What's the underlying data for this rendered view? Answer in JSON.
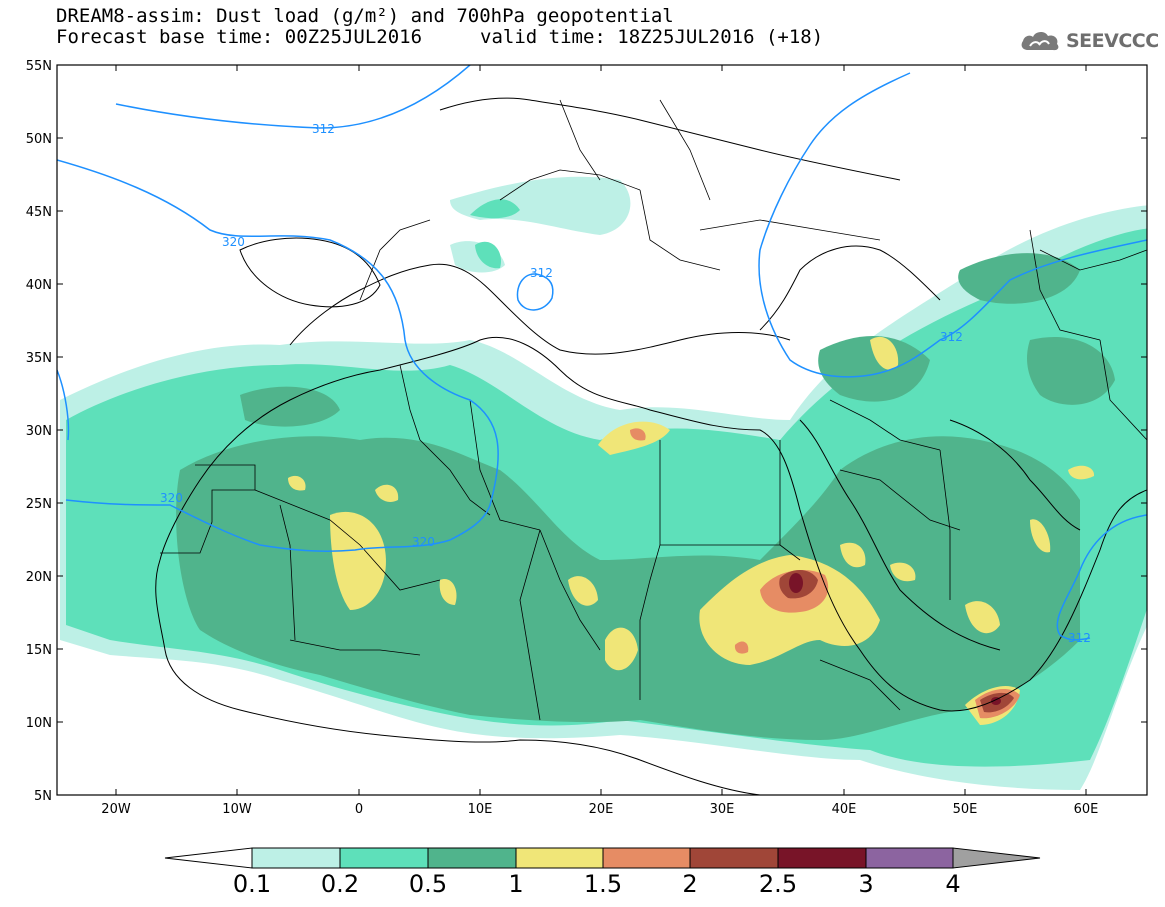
{
  "header": {
    "title_line1": "DREAM8-assim: Dust load (g/m²) and 700hPa geopotential",
    "title_line2": "Forecast base time: 00Z25JUL2016",
    "valid_time": "valid time: 18Z25JUL2016 (+18)",
    "logo_text": "SEEVCCC"
  },
  "map": {
    "lat_labels": [
      "55N",
      "50N",
      "45N",
      "40N",
      "35N",
      "30N",
      "25N",
      "20N",
      "15N",
      "10N",
      "5N"
    ],
    "lon_labels": [
      "20W",
      "10W",
      "0",
      "10E",
      "20E",
      "30E",
      "40E",
      "50E",
      "60E"
    ],
    "contour_labels": {
      "c312_uk": "312",
      "c320_bay": "320",
      "c312_italy": "312",
      "c312_iran": "312",
      "c320_atl": "320",
      "c320_sahara": "320",
      "c312_arab": "312"
    },
    "contour_color": "#1e90ff"
  },
  "colorbar": {
    "labels": [
      "0.1",
      "0.2",
      "0.5",
      "1",
      "1.5",
      "2",
      "2.5",
      "3",
      "4"
    ],
    "colors": [
      "#ffffff",
      "#bdf0e6",
      "#5ee0ba",
      "#50b48c",
      "#f0e678",
      "#e68c64",
      "#a04638",
      "#781428",
      "#8c64a0",
      "#a0a0a0"
    ]
  }
}
